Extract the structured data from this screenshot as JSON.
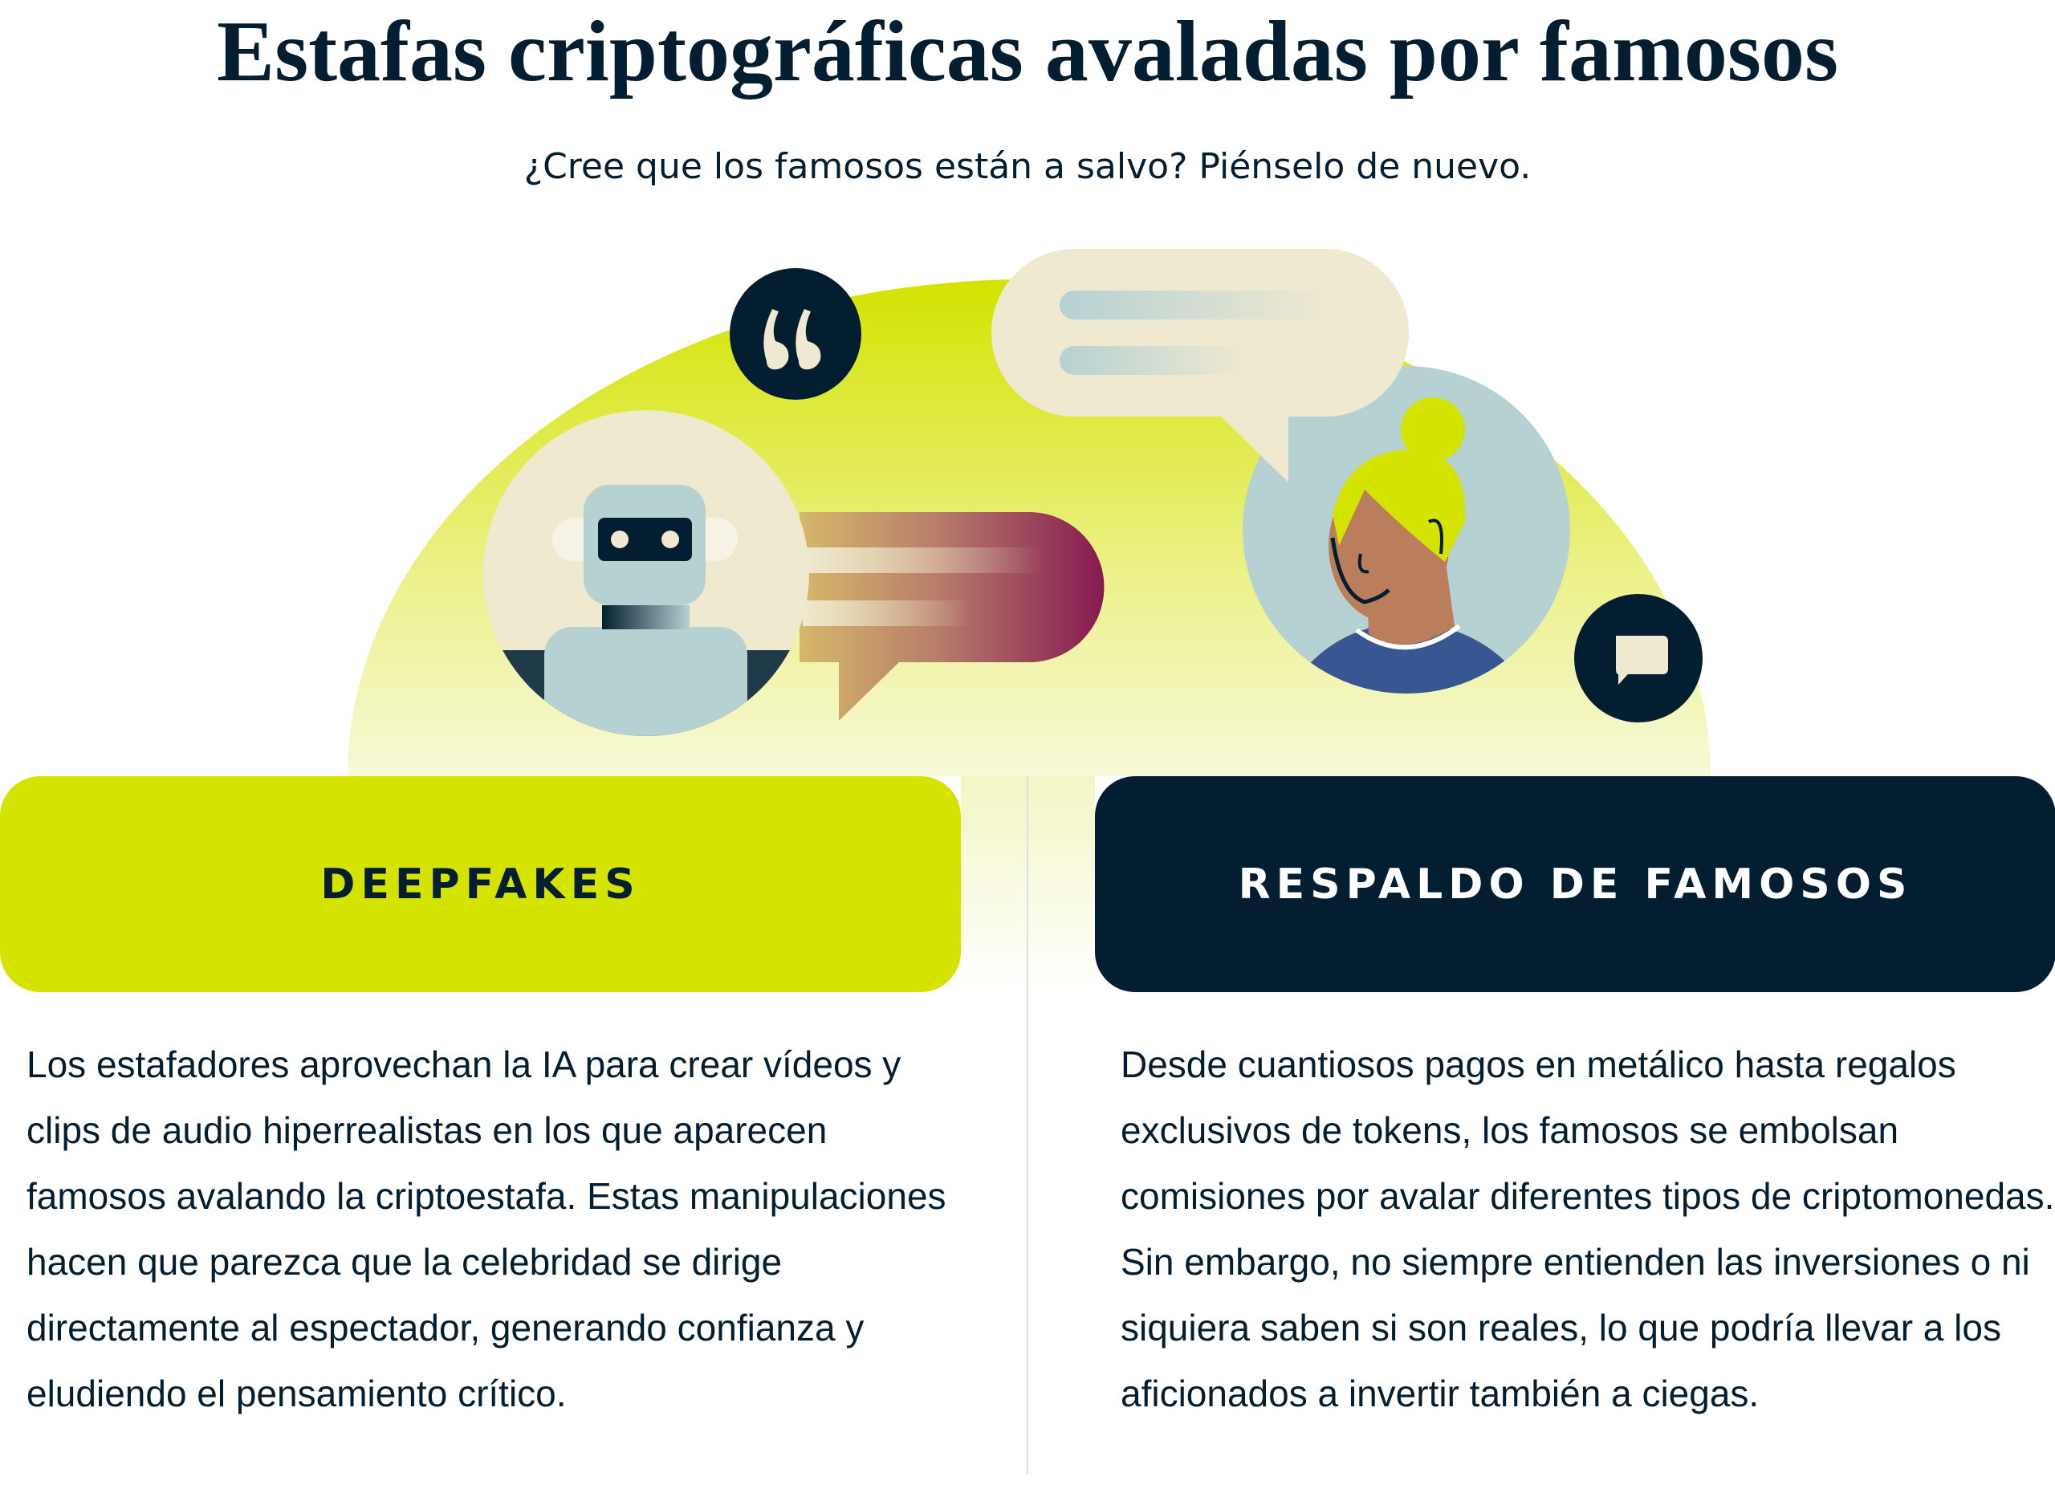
{
  "title": "Estafas criptográficas avaladas por famosos",
  "subtitle": "¿Cree que los famosos están a salvo? Piénselo de nuevo.",
  "colors": {
    "navy": "#031e31",
    "lime": "#d4e300",
    "cream": "#efe9d0",
    "slate": "#b6d1d2",
    "plum": "#861a52",
    "skin": "#bb7e5c",
    "shirt": "#385792"
  },
  "illustration": {
    "icons": [
      "quote-icon",
      "robot-icon",
      "speech-bubble-icon",
      "woman-avatar-icon",
      "chat-icon"
    ]
  },
  "cards": [
    {
      "label": "DEEPFAKES",
      "text": "Los estafadores aprovechan la IA para crear vídeos y clips de audio hiperrealistas en los que aparecen famosos avalando la criptoestafa. Estas manipulaciones hacen que parezca que la celebridad se dirige directamente al espectador, generando confianza y eludiendo el pensamiento crítico."
    },
    {
      "label": "RESPALDO DE FAMOSOS",
      "text": "Desde cuantiosos pagos en metálico hasta regalos exclusivos de tokens, los famosos se embolsan comisiones por avalar diferentes tipos de criptomonedas. Sin embargo, no siempre entienden las inversiones o ni siquiera saben si son reales, lo que podría llevar a los aficionados a invertir también a ciegas."
    }
  ]
}
